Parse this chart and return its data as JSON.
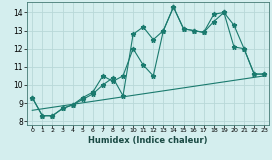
{
  "xlabel": "Humidex (Indice chaleur)",
  "xlim": [
    -0.5,
    23.5
  ],
  "ylim": [
    7.8,
    14.6
  ],
  "bg_color": "#d4eeee",
  "grid_color": "#b8d8d8",
  "line_color": "#1a7a6e",
  "line1_x": [
    0,
    1,
    2,
    3,
    4,
    5,
    6,
    7,
    8,
    9,
    10,
    11,
    12,
    13,
    14,
    15,
    16,
    17,
    18,
    19,
    20,
    21,
    22,
    23
  ],
  "line1_y": [
    9.3,
    8.3,
    8.3,
    8.7,
    8.9,
    9.2,
    9.5,
    10.0,
    10.4,
    9.4,
    12.8,
    13.2,
    12.5,
    13.0,
    14.3,
    13.1,
    13.0,
    12.9,
    13.9,
    14.0,
    13.3,
    12.0,
    10.6,
    10.6
  ],
  "line2_x": [
    0,
    1,
    2,
    3,
    4,
    5,
    6,
    7,
    8,
    9,
    10,
    11,
    12,
    13,
    14,
    15,
    16,
    17,
    18,
    19,
    20,
    21,
    22,
    23
  ],
  "line2_y": [
    9.3,
    8.3,
    8.3,
    8.7,
    8.9,
    9.3,
    9.6,
    10.5,
    10.2,
    10.5,
    12.0,
    11.1,
    10.5,
    13.0,
    14.3,
    13.1,
    13.0,
    12.9,
    13.5,
    14.0,
    12.1,
    12.0,
    10.6,
    10.6
  ],
  "line3_x": [
    0,
    23
  ],
  "line3_y": [
    8.6,
    10.5
  ],
  "yticks": [
    8,
    9,
    10,
    11,
    12,
    13,
    14
  ],
  "xticks": [
    0,
    1,
    2,
    3,
    4,
    5,
    6,
    7,
    8,
    9,
    10,
    11,
    12,
    13,
    14,
    15,
    16,
    17,
    18,
    19,
    20,
    21,
    22,
    23
  ],
  "marker": "*",
  "markersize": 3.5,
  "linewidth": 0.8
}
